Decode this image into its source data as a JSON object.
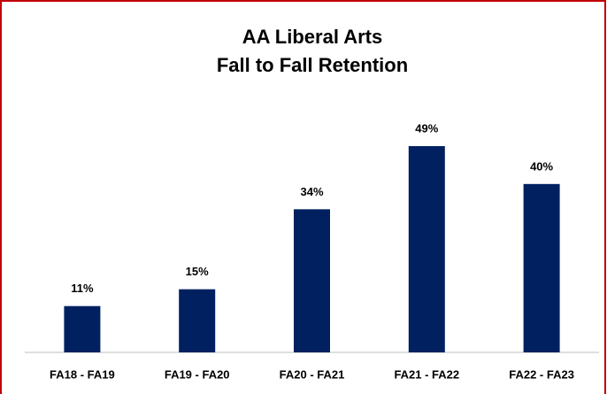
{
  "chart_data": {
    "type": "bar",
    "title": [
      "AA Liberal Arts",
      "Fall to Fall Retention"
    ],
    "categories": [
      "FA18 - FA19",
      "FA19 - FA20",
      "FA20 - FA21",
      "FA21 - FA22",
      "FA22 - FA23"
    ],
    "values": [
      11,
      15,
      34,
      49,
      40
    ],
    "value_labels": [
      "11%",
      "15%",
      "34%",
      "49%",
      "40%"
    ],
    "color": "#002060",
    "ylim": [
      0,
      55
    ]
  }
}
